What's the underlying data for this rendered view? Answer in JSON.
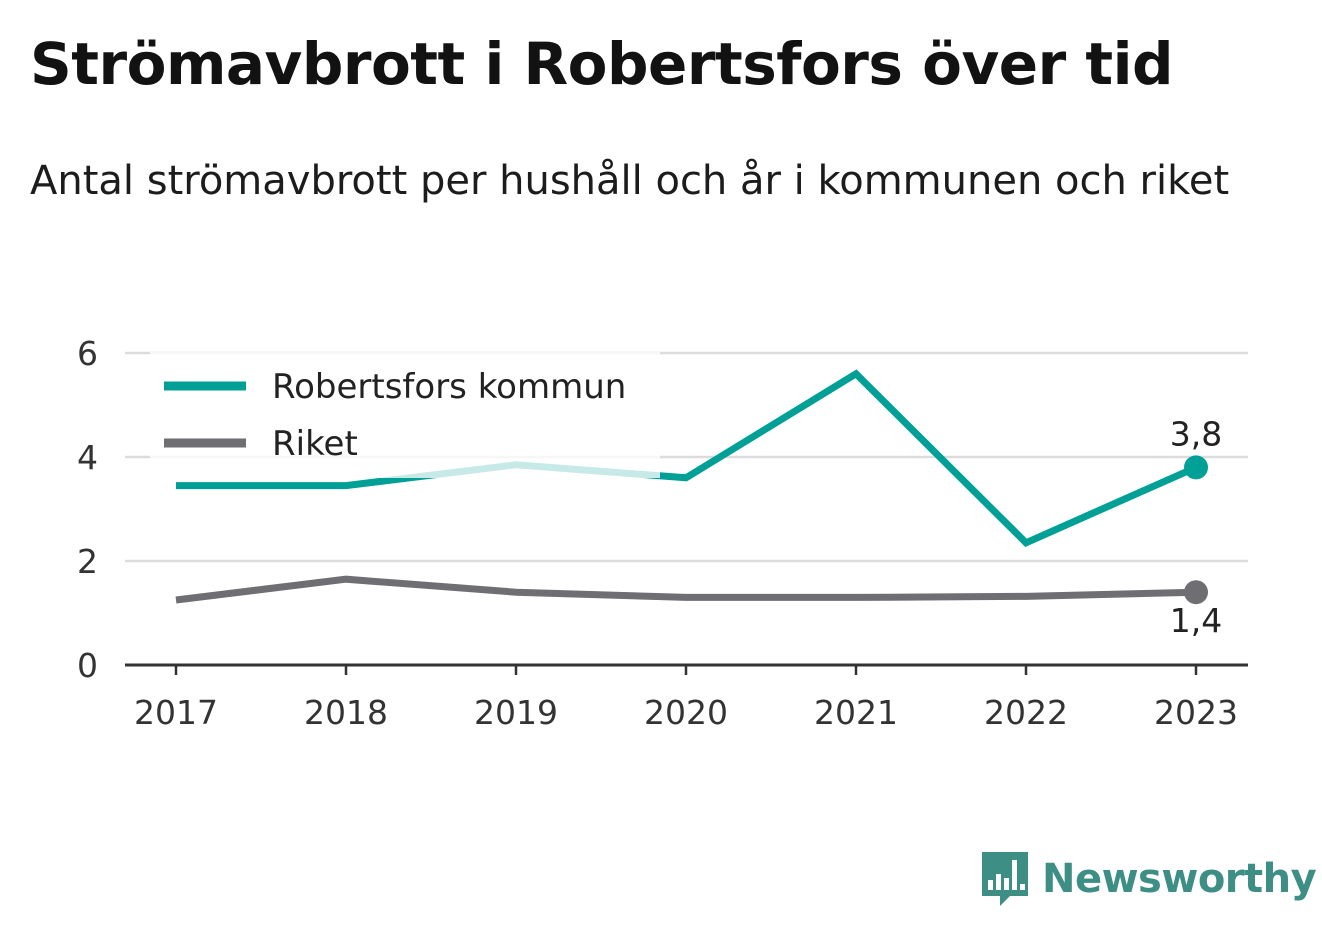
{
  "title": "Strömavbrott i Robertsfors över tid",
  "subtitle": "Antal strömavbrott per hushåll och år i kommunen och riket",
  "brand": {
    "name": "Newsworthy",
    "icon": "bar-chart-speech-bubble-icon",
    "color": "#3d8f86"
  },
  "chart_data": {
    "type": "line",
    "x": [
      "2017",
      "2018",
      "2019",
      "2020",
      "2021",
      "2022",
      "2023"
    ],
    "ylim": [
      0,
      6
    ],
    "yticks": [
      "0",
      "2",
      "4",
      "6"
    ],
    "grid": true,
    "legend_position": "top-left",
    "series": [
      {
        "name": "Robertsfors kommun",
        "color": "#00a096",
        "values": [
          3.45,
          3.45,
          3.85,
          3.6,
          5.6,
          2.35,
          3.8
        ],
        "end_label": "3,8"
      },
      {
        "name": "Riket",
        "color": "#6e6e73",
        "values": [
          1.25,
          1.65,
          1.4,
          1.3,
          1.3,
          1.32,
          1.4
        ],
        "end_label": "1,4"
      }
    ]
  }
}
